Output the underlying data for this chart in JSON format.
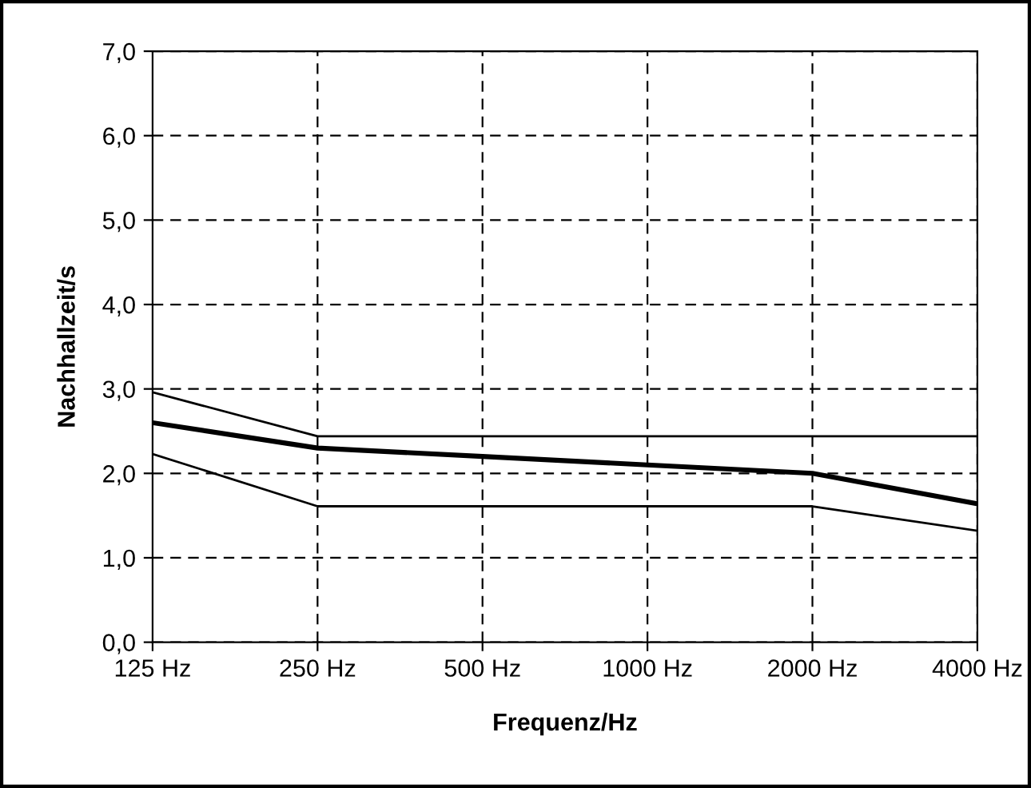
{
  "chart_data": {
    "type": "line",
    "xlabel": "Frequenz/Hz",
    "ylabel": "Nachhallzeit/s",
    "categories": [
      "125 Hz",
      "250 Hz",
      "500 Hz",
      "1000 Hz",
      "2000 Hz",
      "4000 Hz"
    ],
    "series": [
      {
        "color": "#000000",
        "values": [
          2.6,
          2.3,
          2.2,
          2.1,
          2.0,
          1.64
        ]
      },
      {
        "color": "#000000",
        "values": [
          2.96,
          2.44,
          2.44,
          2.44,
          2.44,
          2.44
        ]
      },
      {
        "color": "#000000",
        "values": [
          2.23,
          1.61,
          1.61,
          1.61,
          1.61,
          1.32
        ]
      }
    ],
    "ylim": [
      0,
      7
    ],
    "yticks": [
      {
        "value": 0,
        "label": "0,0"
      },
      {
        "value": 1,
        "label": "1,0"
      },
      {
        "value": 2,
        "label": "2,0"
      },
      {
        "value": 3,
        "label": "3,0"
      },
      {
        "value": 4,
        "label": "4,0"
      },
      {
        "value": 5,
        "label": "5,0"
      },
      {
        "value": 6,
        "label": "6,0"
      },
      {
        "value": 7,
        "label": "7,0"
      }
    ],
    "grid": true,
    "marker": "none",
    "line_style": "solid",
    "legend": false
  }
}
